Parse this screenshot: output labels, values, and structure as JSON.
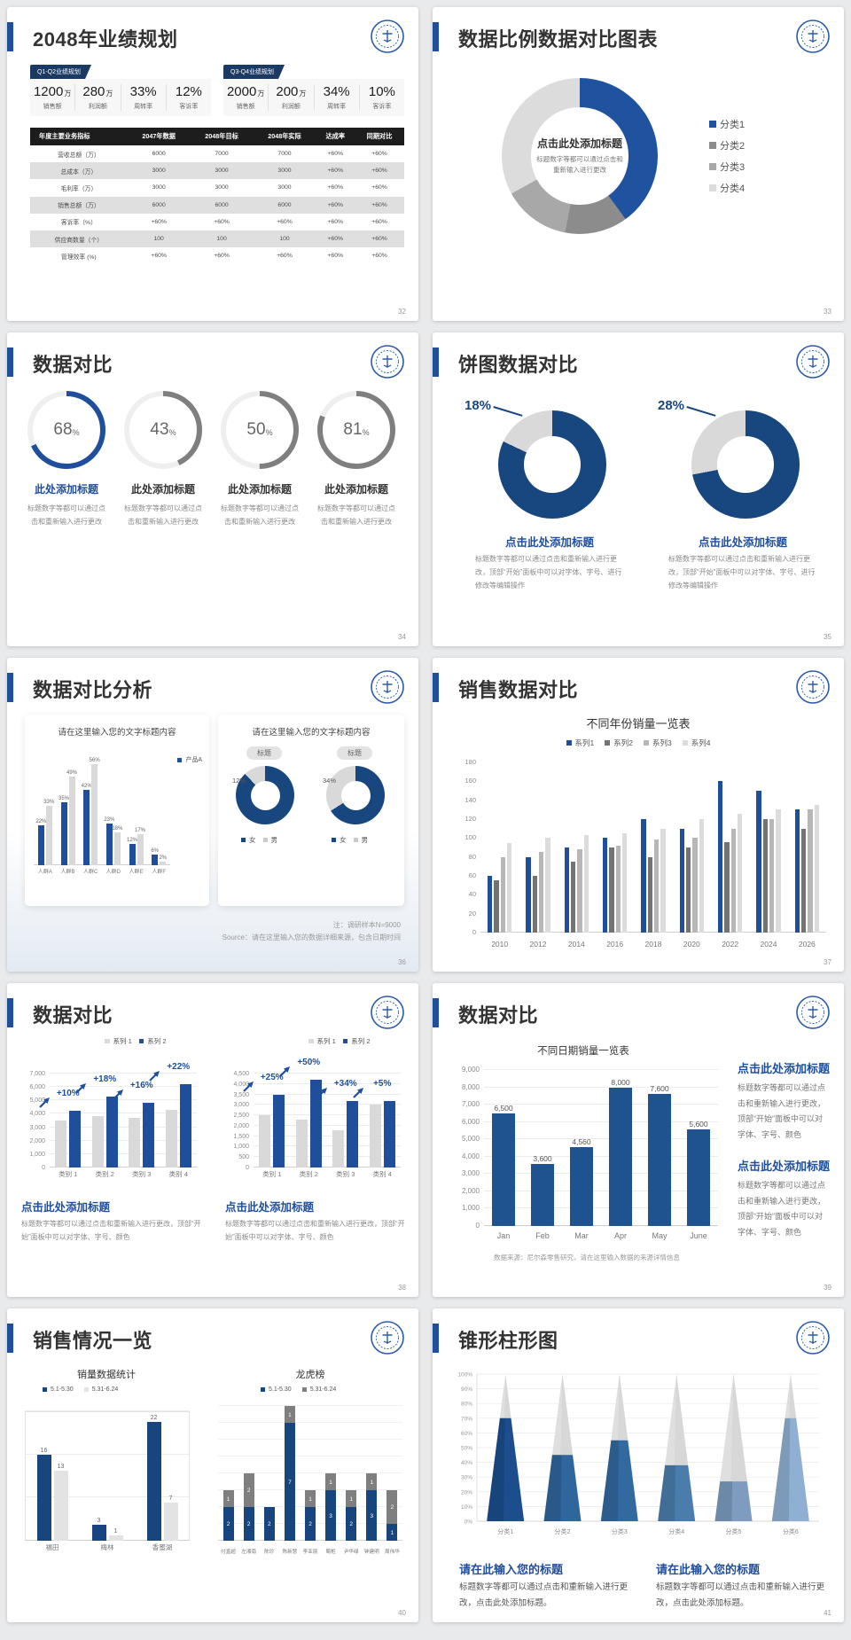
{
  "accent": "#1f4e9c",
  "dark_blue": "#17477e",
  "slides": [
    {
      "title": "2048年业绩规划",
      "page": "32",
      "badges": [
        {
          "label": "Q1-Q2业绩规划",
          "stats": [
            {
              "value": "1200",
              "unit": "万",
              "label": "销售额"
            },
            {
              "value": "280",
              "unit": "万",
              "label": "利润额"
            },
            {
              "value": "33%",
              "unit": "",
              "label": "周转率"
            },
            {
              "value": "12%",
              "unit": "",
              "label": "客诉率"
            }
          ]
        },
        {
          "label": "Q3-Q4业绩规划",
          "stats": [
            {
              "value": "2000",
              "unit": "万",
              "label": "销售额"
            },
            {
              "value": "200",
              "unit": "万",
              "label": "利润额"
            },
            {
              "value": "34%",
              "unit": "",
              "label": "周转率"
            },
            {
              "value": "10%",
              "unit": "",
              "label": "客诉率"
            }
          ]
        }
      ],
      "table": {
        "headers": [
          "年度主要业务指标",
          "2047年数据",
          "2048年目标",
          "2048年实际",
          "达成率",
          "同期对比"
        ],
        "rows": [
          [
            "营收总额（万）",
            "6000",
            "7000",
            "7000",
            "+60%",
            "+60%"
          ],
          [
            "总成本（万）",
            "3000",
            "3000",
            "3000",
            "+60%",
            "+60%"
          ],
          [
            "毛利率（万）",
            "3000",
            "3000",
            "3000",
            "+60%",
            "+60%"
          ],
          [
            "销售总额（万）",
            "6000",
            "6000",
            "6000",
            "+60%",
            "+60%"
          ],
          [
            "客诉率（%）",
            "+60%",
            "+60%",
            "+60%",
            "+60%",
            "+60%"
          ],
          [
            "供应商数量（个）",
            "100",
            "100",
            "100",
            "+60%",
            "+60%"
          ],
          [
            "管理效率 (%)",
            "+60%",
            "+60%",
            "+60%",
            "+60%",
            "+60%"
          ]
        ]
      }
    },
    {
      "title": "数据比例数据对比图表",
      "page": "33",
      "donut": {
        "center_title": "点击此处添加标题",
        "center_sub": "标题数字等都可以通过点击和重新输入进行更改",
        "segments": [
          {
            "label": "分类1",
            "value": 40,
            "color": "#1f53a0"
          },
          {
            "label": "分类2",
            "value": 13,
            "color": "#8c8c8c"
          },
          {
            "label": "分类3",
            "value": 14,
            "color": "#a8a8a8"
          },
          {
            "label": "分类4",
            "value": 33,
            "color": "#dcdcdc"
          }
        ]
      }
    },
    {
      "title": "数据对比",
      "page": "34",
      "items": [
        {
          "pct": 68,
          "color": "#1f4e9c",
          "title": "此处添加标题",
          "title_color": "#1f4e9c",
          "desc": "标题数字等都可以通过点击和重新输入进行更改"
        },
        {
          "pct": 43,
          "color": "#7f7f7f",
          "title": "此处添加标题",
          "title_color": "#333333",
          "desc": "标题数字等都可以通过点击和重新输入进行更改"
        },
        {
          "pct": 50,
          "color": "#7f7f7f",
          "title": "此处添加标题",
          "title_color": "#333333",
          "desc": "标题数字等都可以通过点击和重新输入进行更改"
        },
        {
          "pct": 81,
          "color": "#7f7f7f",
          "title": "此处添加标题",
          "title_color": "#333333",
          "desc": "标题数字等都可以通过点击和重新输入进行更改"
        }
      ]
    },
    {
      "title": "饼图数据对比",
      "page": "35",
      "items": [
        {
          "pct_label": "18%",
          "gray_pct": 18,
          "title": "点击此处添加标题",
          "desc": "标题数字等都可以通过点击和重新输入进行更改，顶部“开始”面板中可以对字体、字号、进行修改等编辑操作"
        },
        {
          "pct_label": "28%",
          "gray_pct": 28,
          "title": "点击此处添加标题",
          "desc": "标题数字等都可以通过点击和重新输入进行更改，顶部“开始”面板中可以对字体、字号、进行修改等编辑操作"
        }
      ]
    },
    {
      "title": "数据对比分析",
      "page": "36",
      "left_card": {
        "header": "请在这里输入您的文字标题内容",
        "legend": "产品A",
        "categories": [
          "人群A",
          "人群B",
          "人群C",
          "人群D",
          "人群E",
          "人群F"
        ],
        "blue_values": [
          22,
          35,
          42,
          23,
          12,
          6
        ],
        "gray_values": [
          33,
          49,
          56,
          18,
          17,
          2
        ],
        "blue_labels": [
          "22%",
          "35%",
          "42%",
          "23%",
          "12%",
          "6%"
        ],
        "gray_labels": [
          "33%",
          "49%",
          "56%",
          "18%",
          "17%",
          "2%"
        ]
      },
      "right_card": {
        "header": "请在这里输入您的文字标题内容",
        "badge": "标题",
        "donuts": [
          {
            "gray_pct": 12,
            "label": "12%"
          },
          {
            "gray_pct": 34,
            "label": "34%"
          }
        ],
        "legend_female": "女",
        "legend_male": "男"
      },
      "note1": "注：调研样本N=9000",
      "note2": "Source：请在这里输入您的数据详细来源，包含日期时间"
    },
    {
      "title": "销售数据对比",
      "page": "37",
      "chart": {
        "title": "不同年份销量一览表",
        "legend": [
          "系列1",
          "系列2",
          "系列3",
          "系列4"
        ],
        "colors": [
          "#1f4e9c",
          "#737373",
          "#b7b7b7",
          "#dcdcdc"
        ],
        "y_max": 180,
        "y_step": 20,
        "categories": [
          "2010",
          "2012",
          "2014",
          "2016",
          "2018",
          "2020",
          "2022",
          "2024",
          "2026"
        ],
        "series": [
          [
            60,
            80,
            90,
            100,
            120,
            110,
            160,
            150,
            130
          ],
          [
            55,
            60,
            75,
            90,
            80,
            90,
            96,
            120,
            110
          ],
          [
            80,
            85,
            88,
            92,
            98,
            100,
            110,
            120,
            130
          ],
          [
            95,
            100,
            103,
            105,
            110,
            120,
            126,
            130,
            135
          ]
        ]
      }
    },
    {
      "title": "数据对比",
      "page": "38",
      "charts": [
        {
          "legend": [
            "系列 1",
            "系列 2"
          ],
          "y_max": 7000,
          "y_step": 1000,
          "categories": [
            "类别 1",
            "类别 2",
            "类别 3",
            "类别 4"
          ],
          "gray": [
            3500,
            3800,
            3700,
            4300
          ],
          "blue": [
            4200,
            5300,
            4800,
            6200
          ],
          "deltas": [
            "+10%",
            "+18%",
            "+16%",
            "+22%"
          ],
          "title": "点击此处添加标题",
          "desc": "标题数字等都可以通过点击和重新输入进行更改，顶部“开始”面板中可以对字体、字号、颜色"
        },
        {
          "legend": [
            "系列 1",
            "系列 2"
          ],
          "y_max": 4500,
          "y_step": 500,
          "categories": [
            "类别 1",
            "类别 2",
            "类别 3",
            "类别 4"
          ],
          "gray": [
            2500,
            2300,
            1800,
            3000
          ],
          "blue": [
            3500,
            4200,
            3200,
            3200
          ],
          "deltas": [
            "+25%",
            "+50%",
            "+34%",
            "+5%"
          ],
          "title": "点击此处添加标题",
          "desc": "标题数字等都可以通过点击和重新输入进行更改，顶部“开始”面板中可以对字体、字号、颜色"
        }
      ]
    },
    {
      "title": "数据对比",
      "page": "39",
      "chart": {
        "title": "不同日期销量一览表",
        "y_max": 9000,
        "y_step": 1000,
        "categories": [
          "Jan",
          "Feb",
          "Mar",
          "Apr",
          "May",
          "June"
        ],
        "values": [
          6500,
          3600,
          4560,
          8000,
          7600,
          5600
        ],
        "labels": [
          "6,500",
          "3,600",
          "4,560",
          "8,000",
          "7,600",
          "5,600"
        ]
      },
      "source": "数据来源：尼尔森零售研究，请在这里输入数据的来源详情信息",
      "blocks": [
        {
          "title": "点击此处添加标题",
          "desc": "标题数字等都可以通过点击和重新输入进行更改，顶部“开始”面板中可以对字体、字号、颜色"
        },
        {
          "title": "点击此处添加标题",
          "desc": "标题数字等都可以通过点击和重新输入进行更改，顶部“开始”面板中可以对字体、字号、颜色"
        }
      ]
    },
    {
      "title": "销售情况一览",
      "page": "40",
      "left": {
        "title": "销量数据统计",
        "legend": [
          "5.1-5.30",
          "5.31-6.24"
        ],
        "legend_colors": [
          "#17457e",
          "#e3e3e3"
        ],
        "categories": [
          "福田",
          "梅林",
          "香蜜湖"
        ],
        "series1": [
          16,
          3,
          22
        ],
        "series2": [
          13,
          1,
          7
        ],
        "y_max": 24
      },
      "right": {
        "title": "龙虎榜",
        "legend": [
          "5.1-5.30",
          "5.31-6.24"
        ],
        "legend_colors": [
          "#17457e",
          "#7f7f7f"
        ],
        "categories": [
          "付直超",
          "左湘南",
          "陈珍",
          "陈新慧",
          "李亚丽",
          "蜀柜",
          "尹华绿",
          "钟建明",
          "周伟华"
        ],
        "blue": [
          2,
          2,
          2,
          7,
          2,
          3,
          2,
          3,
          1
        ],
        "gray": [
          1,
          2,
          0,
          1,
          1,
          1,
          1,
          1,
          2
        ],
        "y_max": 8
      }
    },
    {
      "title": "锥形柱形图",
      "page": "41",
      "cone": {
        "categories": [
          "分类1",
          "分类2",
          "分类3",
          "分类4",
          "分类5",
          "分类6"
        ],
        "values": [
          70,
          45,
          55,
          38,
          27,
          70
        ],
        "colors": [
          "#1c4e8e",
          "#2f669c",
          "#32699f",
          "#4a7dab",
          "#7d9cc0",
          "#8fb0d2"
        ],
        "y_labels": [
          "0%",
          "10%",
          "20%",
          "30%",
          "40%",
          "50%",
          "60%",
          "70%",
          "80%",
          "90%",
          "100%"
        ]
      },
      "blocks": [
        {
          "title": "请在此输入您的标题",
          "desc": "标题数字等都可以通过点击和重新输入进行更改，点击此处添加标题。"
        },
        {
          "title": "请在此输入您的标题",
          "desc": "标题数字等都可以通过点击和重新输入进行更改，点击此处添加标题。"
        }
      ]
    }
  ]
}
